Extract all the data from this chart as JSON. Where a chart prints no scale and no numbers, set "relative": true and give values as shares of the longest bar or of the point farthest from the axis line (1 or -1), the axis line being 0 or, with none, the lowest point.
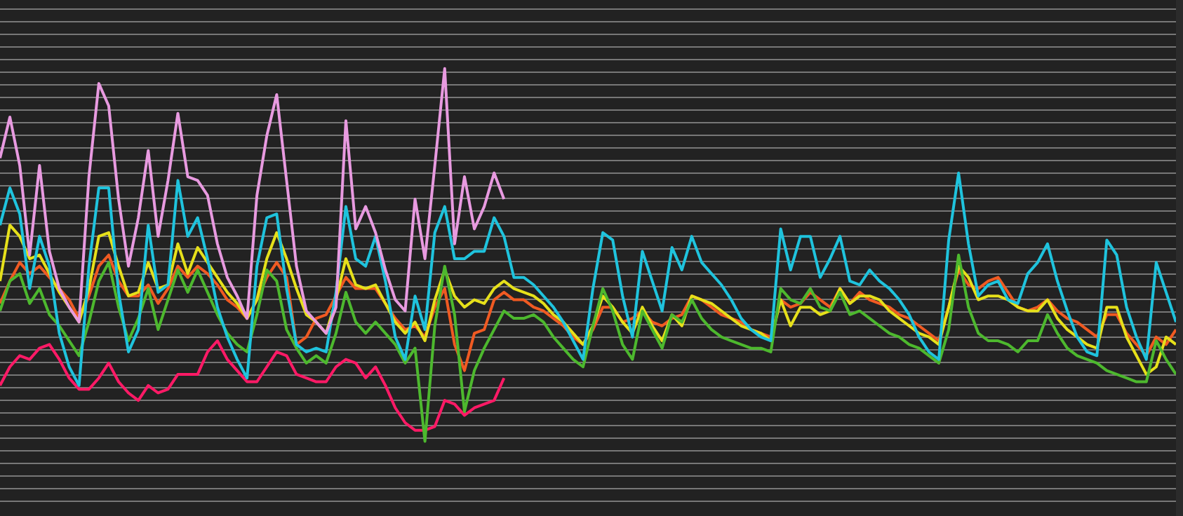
{
  "chart_data": {
    "type": "line",
    "relative": true,
    "grid": "y",
    "legend": false,
    "marker": "none",
    "line_style": "solid",
    "categories": [
      null,
      null,
      null,
      null,
      null,
      null,
      null,
      null,
      null,
      null,
      null,
      null,
      null,
      null,
      null,
      null,
      null,
      null,
      null,
      null,
      null,
      null,
      null,
      null,
      null,
      null,
      null,
      null,
      null,
      null,
      null,
      null,
      null,
      null,
      null,
      null,
      null,
      null,
      null,
      null,
      null,
      null,
      null,
      null,
      null,
      null,
      null,
      null,
      null,
      null,
      null,
      null,
      null,
      null,
      null,
      null,
      null,
      null,
      null,
      null,
      null,
      null,
      null,
      null,
      null,
      null,
      null,
      null,
      null,
      null,
      null,
      null,
      null,
      null,
      null,
      null,
      null,
      null,
      null,
      null,
      null,
      null,
      null,
      null,
      null,
      null,
      null,
      null,
      null,
      null,
      null,
      null,
      null,
      null,
      null,
      null,
      null,
      null,
      null,
      null,
      null,
      null,
      null,
      null,
      null,
      null,
      null,
      null,
      null,
      null,
      null,
      null,
      null,
      null,
      null,
      null,
      null,
      null,
      null,
      null
    ],
    "series": [
      {
        "color": "#e89ae0",
        "values": [
          0.76,
          0.87,
          0.74,
          0.5,
          0.74,
          0.51,
          0.41,
          0.36,
          0.32,
          0.71,
          0.96,
          0.9,
          0.65,
          0.47,
          0.6,
          0.78,
          0.55,
          0.7,
          0.88,
          0.71,
          0.7,
          0.66,
          0.53,
          0.44,
          0.39,
          0.33,
          0.66,
          0.82,
          0.93,
          0.7,
          0.47,
          0.35,
          0.32,
          0.29,
          0.36,
          0.86,
          0.57,
          0.63,
          0.56,
          0.46,
          0.38,
          0.35,
          0.65,
          0.49,
          0.74,
          1.0,
          0.53,
          0.71,
          0.57,
          0.63,
          0.72,
          0.65,
          null,
          null,
          null,
          null,
          null,
          null,
          null,
          null,
          null,
          null,
          null,
          null,
          null,
          null,
          null,
          null,
          null,
          null,
          null,
          null,
          null,
          null,
          null,
          null,
          null,
          null,
          null,
          null,
          null,
          null,
          null,
          null,
          null,
          null,
          null,
          null,
          null,
          null,
          null,
          null,
          null,
          null,
          null,
          null,
          null,
          null,
          null,
          null,
          null,
          null,
          null,
          null,
          null,
          null,
          null,
          null,
          null,
          null,
          null,
          null,
          null,
          null,
          null,
          null,
          null,
          null,
          null,
          null
        ]
      },
      {
        "color": "#1fc3dd",
        "values": [
          0.58,
          0.68,
          0.61,
          0.41,
          0.55,
          0.47,
          0.29,
          0.2,
          0.15,
          0.47,
          0.68,
          0.68,
          0.4,
          0.24,
          0.3,
          0.58,
          0.4,
          0.42,
          0.7,
          0.55,
          0.6,
          0.49,
          0.36,
          0.28,
          0.22,
          0.17,
          0.47,
          0.6,
          0.61,
          0.41,
          0.26,
          0.24,
          0.25,
          0.24,
          0.4,
          0.63,
          0.49,
          0.47,
          0.55,
          0.43,
          0.28,
          0.22,
          0.39,
          0.3,
          0.56,
          0.63,
          0.49,
          0.49,
          0.51,
          0.51,
          0.6,
          0.55,
          0.44,
          0.44,
          0.42,
          0.39,
          0.36,
          0.32,
          0.27,
          0.22,
          0.41,
          0.56,
          0.54,
          0.39,
          0.28,
          0.51,
          0.43,
          0.35,
          0.52,
          0.46,
          0.55,
          0.48,
          0.45,
          0.42,
          0.38,
          0.33,
          0.3,
          0.28,
          0.27,
          0.57,
          0.46,
          0.55,
          0.55,
          0.44,
          0.49,
          0.55,
          0.43,
          0.42,
          0.46,
          0.43,
          0.41,
          0.38,
          0.34,
          0.28,
          0.24,
          0.22,
          0.54,
          0.72,
          0.53,
          0.39,
          0.42,
          0.43,
          0.38,
          0.37,
          0.45,
          0.48,
          0.53,
          0.43,
          0.35,
          0.28,
          0.24,
          0.23,
          0.54,
          0.5,
          0.36,
          0.28,
          0.22,
          0.48,
          0.4,
          0.32
        ]
      },
      {
        "color": "#4db82e",
        "values": [
          0.35,
          0.43,
          0.45,
          0.37,
          0.41,
          0.34,
          0.31,
          0.27,
          0.23,
          0.32,
          0.43,
          0.48,
          0.36,
          0.27,
          0.33,
          0.41,
          0.3,
          0.38,
          0.46,
          0.4,
          0.46,
          0.4,
          0.34,
          0.29,
          0.26,
          0.24,
          0.34,
          0.46,
          0.43,
          0.3,
          0.25,
          0.21,
          0.23,
          0.21,
          0.29,
          0.4,
          0.32,
          0.29,
          0.32,
          0.29,
          0.26,
          0.21,
          0.25,
          0.0,
          0.31,
          0.47,
          0.34,
          0.08,
          0.19,
          0.25,
          0.3,
          0.35,
          0.33,
          0.33,
          0.34,
          0.32,
          0.28,
          0.25,
          0.22,
          0.2,
          0.31,
          0.41,
          0.35,
          0.26,
          0.22,
          0.35,
          0.3,
          0.25,
          0.34,
          0.32,
          0.38,
          0.33,
          0.3,
          0.28,
          0.27,
          0.26,
          0.25,
          0.25,
          0.24,
          0.41,
          0.38,
          0.37,
          0.41,
          0.36,
          0.35,
          0.4,
          0.34,
          0.35,
          0.33,
          0.31,
          0.29,
          0.28,
          0.26,
          0.25,
          0.23,
          0.21,
          0.3,
          0.5,
          0.36,
          0.29,
          0.27,
          0.27,
          0.26,
          0.24,
          0.27,
          0.27,
          0.34,
          0.29,
          0.25,
          0.23,
          0.22,
          0.21,
          0.19,
          0.18,
          0.17,
          0.16,
          0.16,
          0.27,
          0.22,
          0.18
        ]
      },
      {
        "color": "#e6e01a",
        "values": [
          0.43,
          0.58,
          0.55,
          0.49,
          0.5,
          0.45,
          0.4,
          0.36,
          0.32,
          0.41,
          0.55,
          0.56,
          0.47,
          0.39,
          0.4,
          0.48,
          0.41,
          0.42,
          0.53,
          0.45,
          0.52,
          0.48,
          0.44,
          0.4,
          0.37,
          0.33,
          0.38,
          0.49,
          0.56,
          0.49,
          0.41,
          0.34,
          0.32,
          0.29,
          0.38,
          0.49,
          0.42,
          0.41,
          0.42,
          0.37,
          0.32,
          0.29,
          0.32,
          0.27,
          0.38,
          0.46,
          0.39,
          0.36,
          0.38,
          0.37,
          0.41,
          0.43,
          0.41,
          0.4,
          0.39,
          0.37,
          0.34,
          0.32,
          0.29,
          0.26,
          0.31,
          0.39,
          0.36,
          0.32,
          0.29,
          0.36,
          0.31,
          0.27,
          0.34,
          0.31,
          0.39,
          0.38,
          0.37,
          0.35,
          0.33,
          0.31,
          0.3,
          0.29,
          0.27,
          0.38,
          0.31,
          0.36,
          0.36,
          0.34,
          0.35,
          0.41,
          0.37,
          0.39,
          0.39,
          0.38,
          0.35,
          0.33,
          0.31,
          0.29,
          0.28,
          0.26,
          0.36,
          0.47,
          0.44,
          0.38,
          0.39,
          0.39,
          0.38,
          0.36,
          0.35,
          0.35,
          0.38,
          0.33,
          0.3,
          0.28,
          0.26,
          0.25,
          0.36,
          0.36,
          0.28,
          0.23,
          0.18,
          0.2,
          0.28,
          0.26
        ]
      },
      {
        "color": "#f05a22",
        "values": [
          0.37,
          0.43,
          0.48,
          0.45,
          0.47,
          0.44,
          0.41,
          0.38,
          0.33,
          0.39,
          0.47,
          0.5,
          0.43,
          0.39,
          0.39,
          0.42,
          0.37,
          0.41,
          0.47,
          0.44,
          0.47,
          0.45,
          0.42,
          0.38,
          0.36,
          0.33,
          0.38,
          0.44,
          0.48,
          0.44,
          0.26,
          0.28,
          0.33,
          0.34,
          0.39,
          0.44,
          0.41,
          0.41,
          0.41,
          0.37,
          0.33,
          0.3,
          0.31,
          0.28,
          0.36,
          0.41,
          0.26,
          0.19,
          0.29,
          0.3,
          0.38,
          0.4,
          0.38,
          0.38,
          0.36,
          0.35,
          0.33,
          0.31,
          0.28,
          0.26,
          0.3,
          0.36,
          0.36,
          0.32,
          0.33,
          0.35,
          0.32,
          0.31,
          0.33,
          0.34,
          0.39,
          0.38,
          0.36,
          0.34,
          0.33,
          0.32,
          0.3,
          0.29,
          0.28,
          0.38,
          0.36,
          0.37,
          0.4,
          0.38,
          0.36,
          0.41,
          0.37,
          0.4,
          0.38,
          0.37,
          0.36,
          0.34,
          0.33,
          0.31,
          0.29,
          0.27,
          0.36,
          0.46,
          0.42,
          0.41,
          0.43,
          0.44,
          0.4,
          0.36,
          0.35,
          0.36,
          0.38,
          0.35,
          0.33,
          0.32,
          0.3,
          0.28,
          0.34,
          0.34,
          0.29,
          0.26,
          0.23,
          0.28,
          0.26,
          0.3
        ]
      },
      {
        "color": "#ff1a66",
        "values": [
          0.15,
          0.2,
          0.23,
          0.22,
          0.25,
          0.26,
          0.22,
          0.17,
          0.14,
          0.14,
          0.17,
          0.21,
          0.16,
          0.13,
          0.11,
          0.15,
          0.13,
          0.14,
          0.18,
          0.18,
          0.18,
          0.24,
          0.27,
          0.22,
          0.19,
          0.16,
          0.16,
          0.2,
          0.24,
          0.23,
          0.18,
          0.17,
          0.16,
          0.16,
          0.2,
          0.22,
          0.21,
          0.17,
          0.2,
          0.15,
          0.09,
          0.05,
          0.03,
          0.03,
          0.04,
          0.11,
          0.1,
          0.07,
          0.09,
          0.1,
          0.11,
          0.17,
          null,
          null,
          null,
          null,
          null,
          null,
          null,
          null,
          null,
          null,
          null,
          null,
          null,
          null,
          null,
          null,
          null,
          null,
          null,
          null,
          null,
          null,
          null,
          null,
          null,
          null,
          null,
          null,
          null,
          null,
          null,
          null,
          null,
          null,
          null,
          null,
          null,
          null,
          null,
          null,
          null,
          null,
          null,
          null,
          null,
          null,
          null,
          null,
          null,
          null,
          null,
          null,
          null,
          null,
          null,
          null,
          null,
          null,
          null,
          null,
          null,
          null,
          null,
          null,
          null,
          null,
          null,
          null
        ]
      }
    ]
  }
}
